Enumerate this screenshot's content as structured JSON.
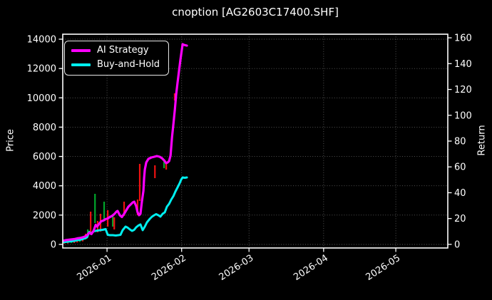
{
  "window": {
    "title": "cnoption [AG2603C17400.SHF]"
  },
  "chart_data": {
    "type": "line",
    "title": "cnoption [AG2603C17400.SHF]",
    "ylabel_left": "Price",
    "ylabel_right": "Return",
    "background_color": "#000000",
    "text_color": "#ffffff",
    "grid": {
      "visible": true,
      "style": "dotted",
      "color": "#5c5c5c"
    },
    "x_axis": {
      "unit": "days_from_2026-01-01",
      "range": [
        -18.4,
        141.6
      ],
      "ticks": [
        {
          "label": "2026-01",
          "day": 0
        },
        {
          "label": "2026-02",
          "day": 31
        },
        {
          "label": "2026-03",
          "day": 59
        },
        {
          "label": "2026-04",
          "day": 90
        },
        {
          "label": "2026-05",
          "day": 120
        }
      ],
      "tick_label_rotation_deg": -33
    },
    "price_axis": {
      "side": "left",
      "range_at_plot_edges": [
        -243,
        14340
      ],
      "ticks": [
        0,
        2000,
        4000,
        6000,
        8000,
        10000,
        12000,
        14000
      ]
    },
    "return_axis": {
      "side": "right",
      "range_at_plot_edges": [
        -2.8,
        162.8
      ],
      "ticks": [
        0,
        20,
        40,
        60,
        80,
        100,
        120,
        140,
        160
      ]
    },
    "legend": {
      "position": "upper-left"
    },
    "series": [
      {
        "name": "AI Strategy",
        "color": "#ff00ff",
        "width": 3.2,
        "points": [
          [
            -18.4,
            243
          ],
          [
            -17.2,
            292
          ],
          [
            -16,
            316
          ],
          [
            -14.8,
            340
          ],
          [
            -13.6,
            365
          ],
          [
            -12.4,
            413
          ],
          [
            -11.3,
            437
          ],
          [
            -10.1,
            486
          ],
          [
            -9.2,
            535
          ],
          [
            -8.3,
            632
          ],
          [
            -7.4,
            802
          ],
          [
            -6.5,
            705
          ],
          [
            -5.6,
            923
          ],
          [
            -4.7,
            1337
          ],
          [
            -4.1,
            1215
          ],
          [
            -3.3,
            1410
          ],
          [
            -2.4,
            1580
          ],
          [
            -1.5,
            1628
          ],
          [
            -0.6,
            1726
          ],
          [
            0.3,
            1774
          ],
          [
            1.2,
            1872
          ],
          [
            2.1,
            1944
          ],
          [
            3,
            2066
          ],
          [
            3.9,
            2236
          ],
          [
            4.4,
            2284
          ],
          [
            5.3,
            1993
          ],
          [
            6.2,
            1872
          ],
          [
            7.1,
            2090
          ],
          [
            8,
            2333
          ],
          [
            8.9,
            2576
          ],
          [
            9.8,
            2722
          ],
          [
            10.7,
            2868
          ],
          [
            11.3,
            2916
          ],
          [
            12.1,
            2625
          ],
          [
            12.7,
            2187
          ],
          [
            13.3,
            1993
          ],
          [
            13.9,
            2090
          ],
          [
            14.5,
            2917
          ],
          [
            15.1,
            3645
          ],
          [
            15.4,
            4521
          ],
          [
            15.7,
            5104
          ],
          [
            16.3,
            5590
          ],
          [
            17.2,
            5833
          ],
          [
            18.4,
            5930
          ],
          [
            19.6,
            5979
          ],
          [
            20.7,
            6027
          ],
          [
            21.9,
            5979
          ],
          [
            22.8,
            5882
          ],
          [
            23.7,
            5736
          ],
          [
            24.6,
            5541
          ],
          [
            25.2,
            5590
          ],
          [
            25.8,
            5687
          ],
          [
            26.4,
            6076
          ],
          [
            27,
            7292
          ],
          [
            27.6,
            8265
          ],
          [
            28.2,
            9237
          ],
          [
            28.7,
            10209
          ],
          [
            29.3,
            11036
          ],
          [
            29.9,
            11813
          ],
          [
            30.5,
            12590
          ],
          [
            31,
            13173
          ],
          [
            31.4,
            13659
          ],
          [
            32,
            13611
          ],
          [
            32.6,
            13586
          ],
          [
            33.2,
            13562
          ]
        ]
      },
      {
        "name": "Buy-and-Hold",
        "color": "#00efef",
        "width": 3,
        "points": [
          [
            -18.4,
            146
          ],
          [
            -17.2,
            170
          ],
          [
            -16,
            194
          ],
          [
            -14.8,
            219
          ],
          [
            -13.6,
            243
          ],
          [
            -12.4,
            292
          ],
          [
            -11.3,
            316
          ],
          [
            -10.1,
            365
          ],
          [
            -9.2,
            413
          ],
          [
            -8.3,
            486
          ],
          [
            -7.4,
            851
          ],
          [
            -6.5,
            729
          ],
          [
            -5.6,
            899
          ],
          [
            -4.7,
            923
          ],
          [
            -3.9,
            948
          ],
          [
            -3,
            972
          ],
          [
            -1.8,
            996
          ],
          [
            -0.6,
            1045
          ],
          [
            0.3,
            656
          ],
          [
            1.2,
            632
          ],
          [
            2.4,
            632
          ],
          [
            3.6,
            608
          ],
          [
            4.7,
            632
          ],
          [
            5.6,
            656
          ],
          [
            6.5,
            972
          ],
          [
            7.7,
            1215
          ],
          [
            8.6,
            1142
          ],
          [
            9.5,
            1021
          ],
          [
            10.4,
            923
          ],
          [
            11.3,
            996
          ],
          [
            12.1,
            1167
          ],
          [
            13,
            1288
          ],
          [
            13.9,
            1361
          ],
          [
            14.8,
            972
          ],
          [
            15.7,
            1215
          ],
          [
            16.6,
            1507
          ],
          [
            17.8,
            1750
          ],
          [
            18.7,
            1896
          ],
          [
            19.6,
            1993
          ],
          [
            20.4,
            2066
          ],
          [
            21.3,
            1993
          ],
          [
            22.2,
            1895
          ],
          [
            23.1,
            2090
          ],
          [
            24,
            2187
          ],
          [
            24.9,
            2576
          ],
          [
            25.8,
            2770
          ],
          [
            26.7,
            3062
          ],
          [
            27.6,
            3305
          ],
          [
            28.4,
            3596
          ],
          [
            29.3,
            3888
          ],
          [
            30.2,
            4180
          ],
          [
            30.8,
            4423
          ],
          [
            31.4,
            4569
          ],
          [
            32.3,
            4545
          ],
          [
            33.2,
            4569
          ]
        ]
      }
    ],
    "wicks": {
      "up_color": "#00a62b",
      "down_color": "#ee1111",
      "stroke_width": 2.2,
      "items": [
        [
          -17.8,
          120,
          40,
          "r"
        ],
        [
          -16.3,
          170,
          60,
          "r"
        ],
        [
          -14.8,
          200,
          90,
          "g"
        ],
        [
          -13.6,
          240,
          100,
          "r"
        ],
        [
          -12.4,
          300,
          130,
          "r"
        ],
        [
          -11.3,
          340,
          170,
          "g"
        ],
        [
          -10.1,
          420,
          210,
          "r"
        ],
        [
          -8.9,
          730,
          340,
          "r"
        ],
        [
          -8,
          1021,
          486,
          "g"
        ],
        [
          -6.8,
          2236,
          778,
          "r"
        ],
        [
          -5,
          3451,
          1458,
          "g"
        ],
        [
          -3.9,
          1604,
          826,
          "r"
        ],
        [
          -2.7,
          2090,
          875,
          "r"
        ],
        [
          -1.2,
          2917,
          1604,
          "g"
        ],
        [
          0.3,
          2333,
          1215,
          "r"
        ],
        [
          2.4,
          2042,
          1215,
          "g"
        ],
        [
          3,
          1847,
          1021,
          "r"
        ],
        [
          7.1,
          2917,
          1944,
          "r"
        ],
        [
          12.7,
          3062,
          1993,
          "r"
        ],
        [
          13.6,
          5493,
          2965,
          "r"
        ],
        [
          19.9,
          5396,
          4521,
          "r"
        ],
        [
          23.7,
          5639,
          5201,
          "g"
        ],
        [
          24.6,
          5590,
          5104,
          "r"
        ],
        [
          28.1,
          10305,
          9819,
          "r"
        ]
      ]
    }
  }
}
